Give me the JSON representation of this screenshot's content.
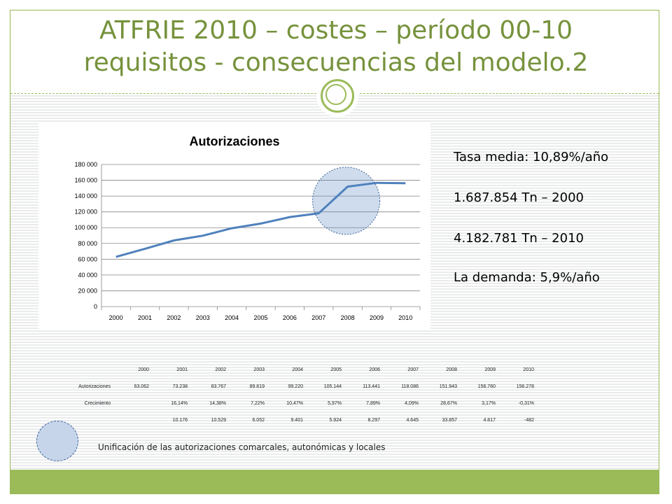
{
  "slide": {
    "title_line1": "ATFRIE 2010 – costes – período 00-10",
    "title_line2": "requisitos - consecuencias del modelo.2",
    "colors": {
      "accent": "#9bbb59",
      "title": "#76923c",
      "series": "#4f81bd"
    }
  },
  "chart_data": {
    "type": "line",
    "title": "Autorizaciones",
    "categories": [
      "2000",
      "2001",
      "2002",
      "2003",
      "2004",
      "2005",
      "2006",
      "2007",
      "2008",
      "2009",
      "2010"
    ],
    "series": [
      {
        "values": [
          63062,
          73238,
          83767,
          89819,
          99220,
          105144,
          113441,
          118086,
          151943,
          156760,
          156278
        ]
      }
    ],
    "ylim": [
      0,
      180000
    ],
    "yticks": [
      0,
      20000,
      40000,
      60000,
      80000,
      100000,
      120000,
      140000,
      160000,
      180000
    ],
    "ytick_labels": [
      "0",
      "20 000",
      "40 000",
      "60 000",
      "80 000",
      "100 000",
      "120 000",
      "140 000",
      "160 000",
      "180 000"
    ],
    "grid": true,
    "legend": "none",
    "highlight": {
      "label": "2008 step",
      "center_x": "2008",
      "center_y": 134000
    }
  },
  "stats": {
    "tasa_media": "Tasa media: 10,89%/año",
    "tn_2000": "1.687.854 Tn – 2000",
    "tn_2010": "4.182.781 Tn – 2010",
    "demanda": "La demanda: 5,9%/año"
  },
  "table": {
    "headers": [
      "2000",
      "2001",
      "2002",
      "2003",
      "2004",
      "2005",
      "2006",
      "2007",
      "2008",
      "2009",
      "2010"
    ],
    "rows": [
      {
        "label": "Autorizaciones",
        "cells": [
          "63.062",
          "73.238",
          "83.767",
          "89.819",
          "99.220",
          "105.144",
          "113.441",
          "118.086",
          "151.943",
          "156.760",
          "156.278"
        ]
      },
      {
        "label": "Crecimiento",
        "cells": [
          "",
          "16,14%",
          "14,38%",
          "7,22%",
          "10,47%",
          "5,97%",
          "7,89%",
          "4,09%",
          "28,67%",
          "3,17%",
          "-0,31%"
        ]
      },
      {
        "label": "",
        "cells": [
          "",
          "10.176",
          "10.529",
          "6.052",
          "9.401",
          "5.924",
          "8.297",
          "4.645",
          "33.857",
          "4.817",
          "-482"
        ]
      }
    ]
  },
  "legend_note": "Unificación de las autorizaciones comarcales, autonómicas y locales"
}
